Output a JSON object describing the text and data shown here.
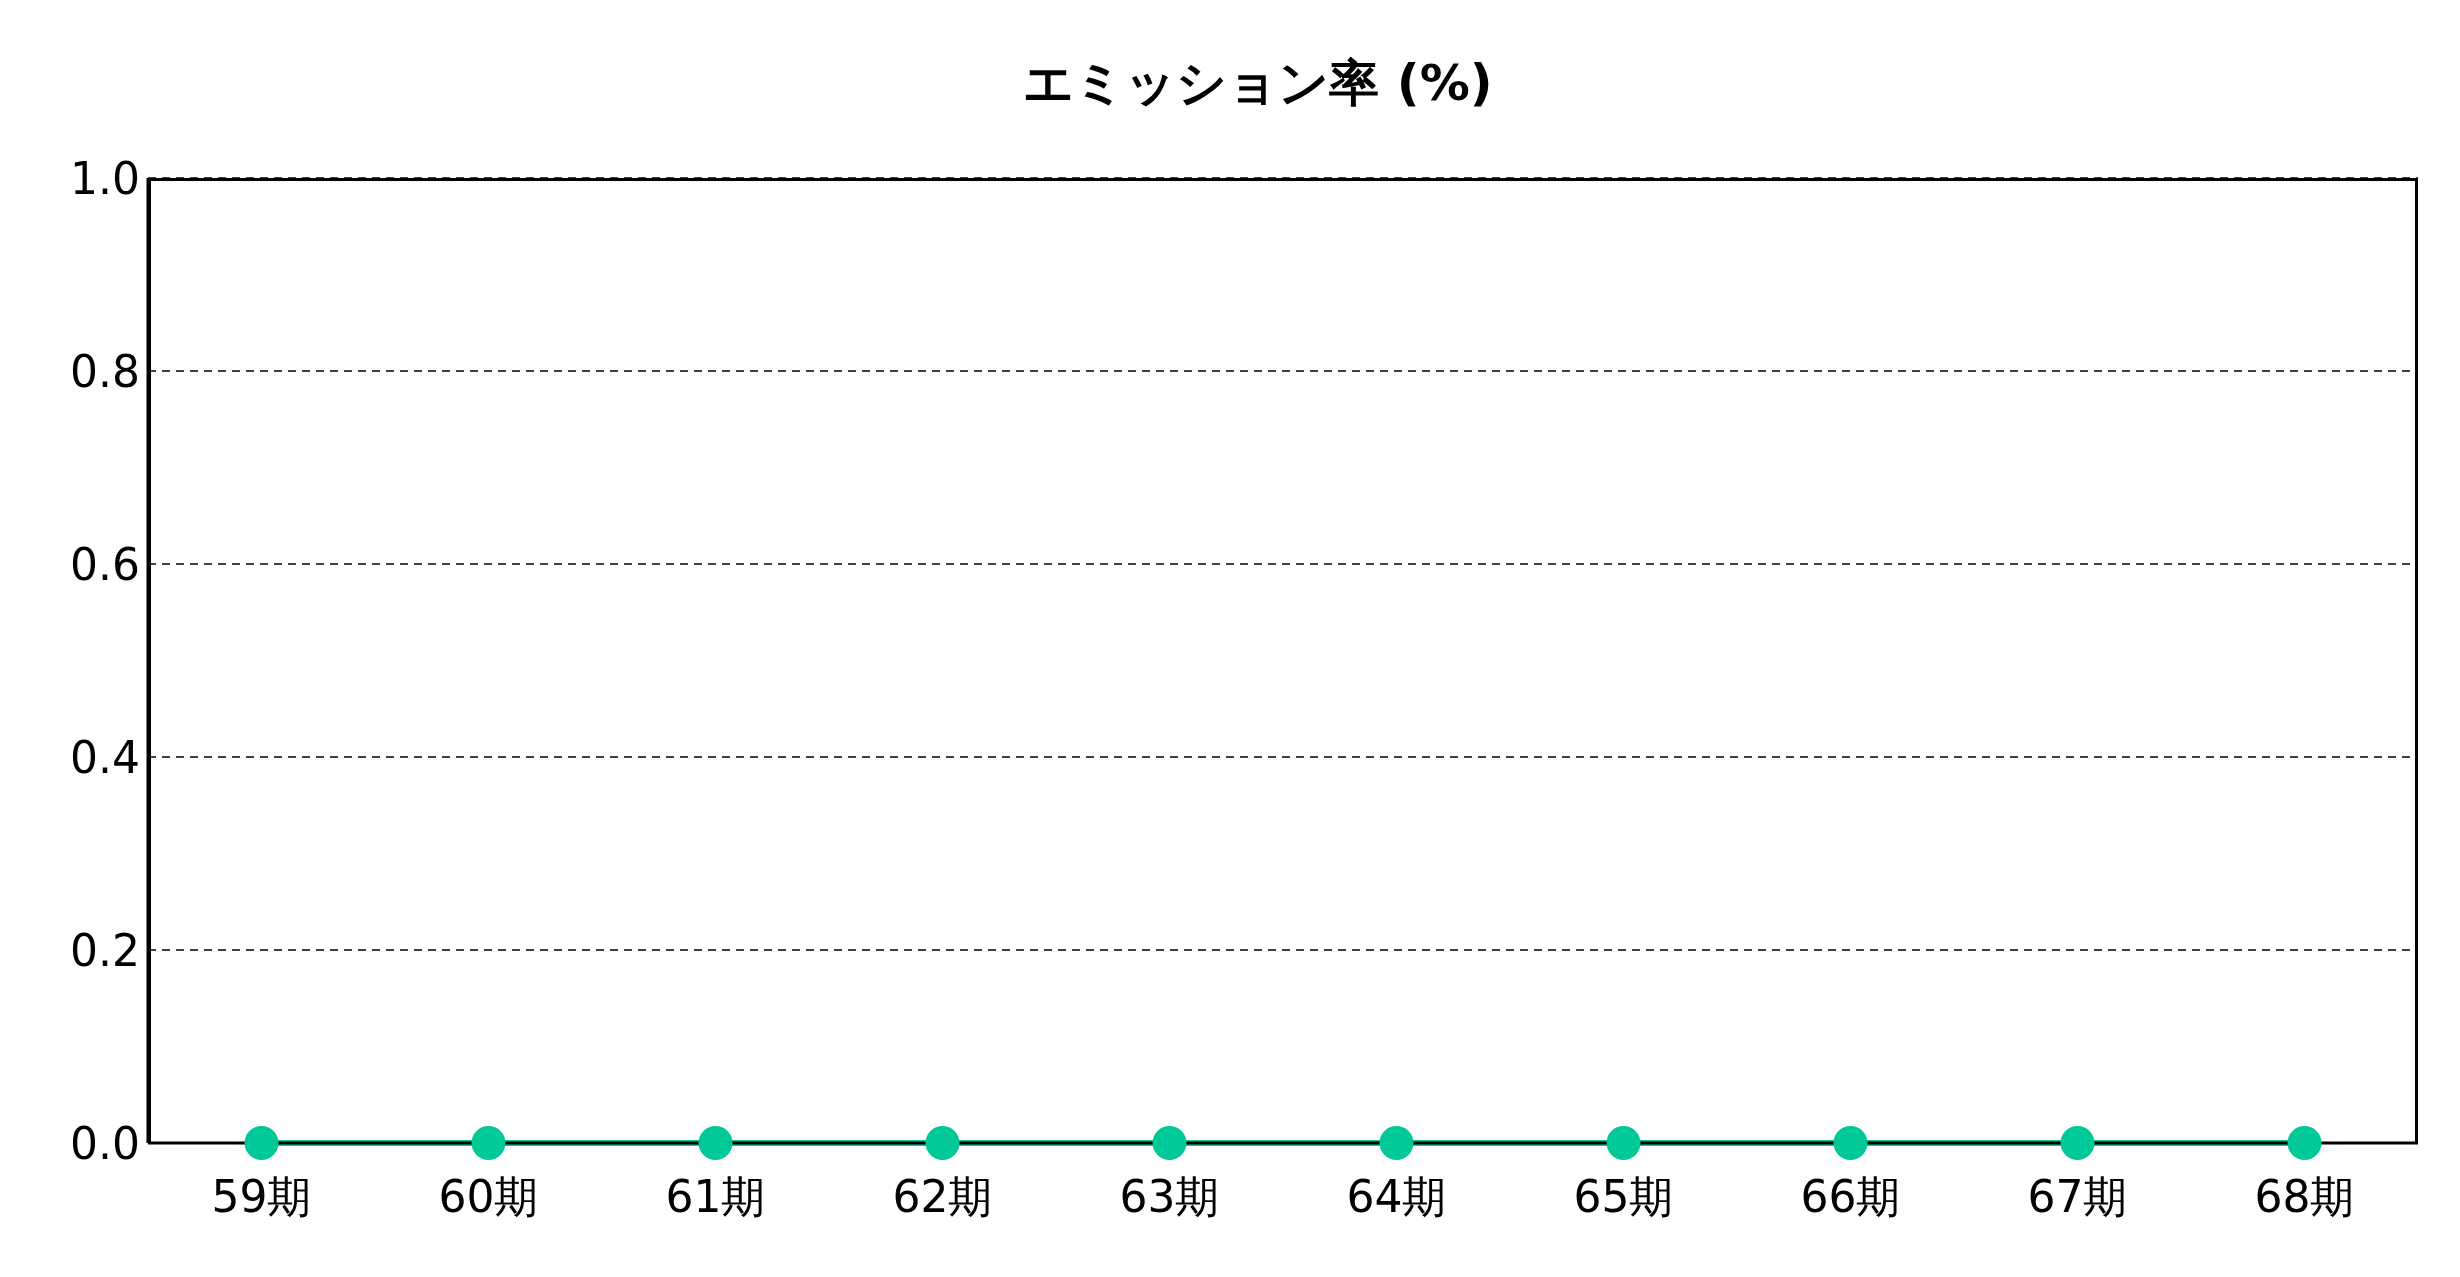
{
  "chart_data": {
    "type": "line",
    "title": "エミッション率 (%)",
    "categories": [
      "59期",
      "60期",
      "61期",
      "62期",
      "63期",
      "64期",
      "65期",
      "66期",
      "67期",
      "68期"
    ],
    "series": [
      {
        "color": "#00c896",
        "values": [
          0,
          0,
          0,
          0,
          0,
          0,
          0,
          0,
          0,
          0
        ]
      }
    ],
    "ylim": [
      0,
      1
    ],
    "yticks": [
      {
        "value": 0,
        "label": "0.0"
      },
      {
        "value": 0.2,
        "label": "0.2"
      },
      {
        "value": 0.4,
        "label": "0.4"
      },
      {
        "value": 0.6,
        "label": "0.6"
      },
      {
        "value": 0.8,
        "label": "0.8"
      },
      {
        "value": 1,
        "label": "1.0"
      }
    ],
    "grid": "y",
    "legend": false,
    "marker": "circle",
    "line_style": "solid"
  }
}
